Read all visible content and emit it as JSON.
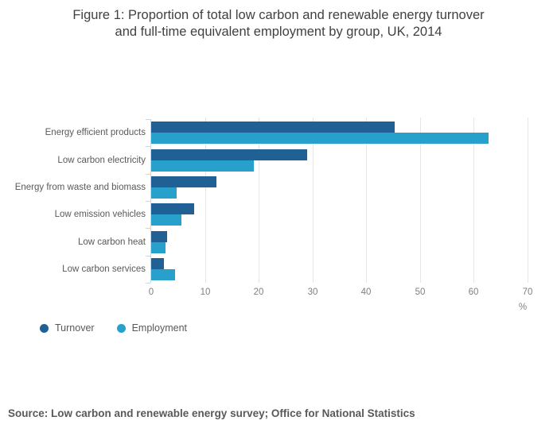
{
  "figure": {
    "title_lines": [
      "Figure 1: Proportion of total low carbon and renewable energy turnover",
      "and full-time equivalent employment by group, UK, 2014"
    ],
    "source": "Source: Low carbon and renewable energy survey; Office for National Statistics"
  },
  "chart_data": {
    "type": "bar",
    "orientation": "horizontal",
    "title": "Figure 1: Proportion of total low carbon and renewable energy turnover and full-time equivalent employment by group, UK, 2014",
    "categories": [
      "Energy efficient products",
      "Low carbon electricity",
      "Energy from waste and biomass",
      "Low emission vehicles",
      "Low carbon heat",
      "Low carbon services"
    ],
    "series": [
      {
        "name": "Turnover",
        "color": "#206095",
        "values": [
          45.3,
          29.0,
          12.1,
          8.0,
          3.0,
          2.4
        ]
      },
      {
        "name": "Employment",
        "color": "#27a0cc",
        "values": [
          62.8,
          19.1,
          4.7,
          5.6,
          2.7,
          4.4
        ]
      }
    ],
    "xlabel": "%",
    "x_ticks": [
      0,
      10,
      20,
      30,
      40,
      50,
      60,
      70
    ],
    "xlim": [
      0,
      70
    ],
    "grid": "vertical",
    "legend_position": "bottom-left"
  },
  "colors": {
    "axis_line": "#c8d6e8",
    "gridline": "#e6e6e6",
    "title_text": "#414042",
    "category_text": "#595959",
    "tick_text": "#7f7f7f",
    "source_text": "#595959"
  }
}
